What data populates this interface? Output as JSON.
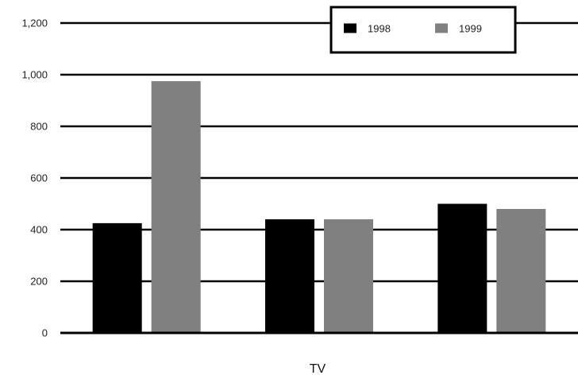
{
  "chart_data": {
    "type": "bar",
    "categories": [
      "",
      "",
      ""
    ],
    "series": [
      {
        "name": "1998",
        "values": [
          425,
          440,
          500
        ],
        "color": "#000000"
      },
      {
        "name": "1999",
        "values": [
          975,
          440,
          480
        ],
        "color": "#808080"
      }
    ],
    "xlabel": "TV",
    "ylabel": "",
    "ylim": [
      0,
      1200
    ],
    "yticks": [
      "0",
      "200",
      "400",
      "600",
      "800",
      "1,000",
      "1,200"
    ],
    "grid": true,
    "legend_position": "top-right"
  }
}
